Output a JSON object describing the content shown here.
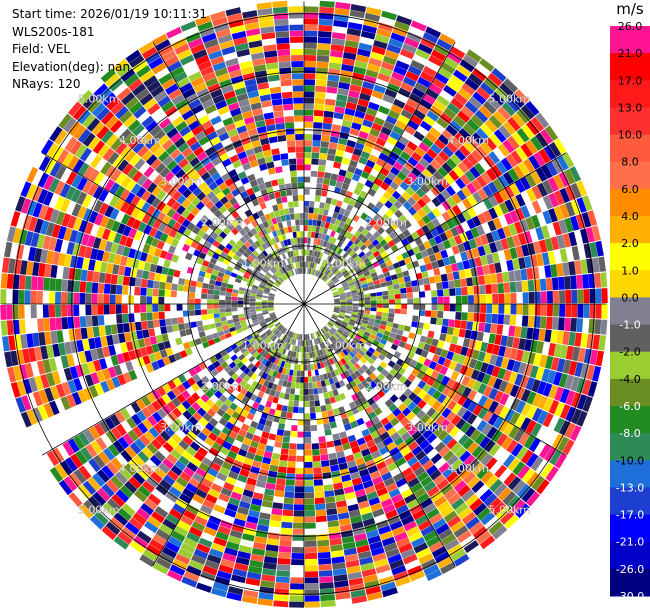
{
  "header": {
    "start_time": "Start time: 2026/01/19 10:11:31",
    "instrument": "WLS200s-181",
    "field": "Field: VEL",
    "elevation": "Elevation(deg): nan",
    "nrays": "NRays: 120"
  },
  "chart_data": {
    "type": "heatmap",
    "projection": "polar",
    "field": "VEL",
    "units": "m/s",
    "n_rays": 120,
    "range_max_km": 5.0,
    "range_rings_km": [
      1.0,
      2.0,
      3.0,
      4.0,
      5.0
    ],
    "ring_labels": [
      "1.00km",
      "2.00km",
      "3.00km",
      "4.00km",
      "5.00km"
    ],
    "spokes_deg": [
      0,
      30,
      60,
      90,
      120,
      150,
      180,
      210,
      240,
      270,
      300,
      330
    ],
    "gap_azimuth_deg": [
      237,
      243
    ],
    "colorbar": {
      "label": "m/s",
      "ticks": [
        "26.0",
        "21.0",
        "17.0",
        "13.0",
        "10.0",
        "8.0",
        "6.0",
        "4.0",
        "2.0",
        "1.0",
        "0.0",
        "-1.0",
        "-2.0",
        "-4.0",
        "-6.0",
        "-8.0",
        "-10.0",
        "-13.0",
        "-17.0",
        "-21.0",
        "-26.0",
        "-30.0"
      ],
      "colors": [
        "#ff1493",
        "#ff0000",
        "#ff1a1a",
        "#ff3030",
        "#ff5a3c",
        "#ff6f4a",
        "#ff8c00",
        "#ffb000",
        "#ffff00",
        "#ffd700",
        "#808090",
        "#606060",
        "#9acd32",
        "#6b8e23",
        "#228b22",
        "#2e8b57",
        "#1e6fd9",
        "#1c3fd0",
        "#0000ff",
        "#0000c8",
        "#000080",
        "#1a1a5a"
      ]
    }
  }
}
